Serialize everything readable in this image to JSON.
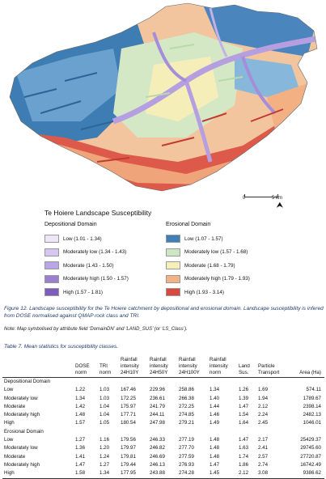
{
  "map": {
    "scale_label_start": "0",
    "scale_label_end": "5 km",
    "north_symbol": "⮝",
    "colors": {
      "blue_dark": "#2e6fa7",
      "blue_light": "#7fb1d6",
      "green": "#cfe5c3",
      "yellow": "#f4edb6",
      "orange": "#f3ac7f",
      "red": "#d64b40",
      "purple": "#b7a4e1"
    }
  },
  "legend": {
    "title": "Te Hoiere Landscape Susceptibility",
    "depositional": {
      "heading": "Depositional Domain",
      "items": [
        {
          "label": "Low (1.01 - 1.34)",
          "color": "#ede6f8"
        },
        {
          "label": "Moderately low (1.34 - 1.43)",
          "color": "#d6c8f0"
        },
        {
          "label": "Moderate (1.43 - 1.50)",
          "color": "#b9a5e4"
        },
        {
          "label": "Moderately high (1.50 - 1.57)",
          "color": "#9a80d2"
        },
        {
          "label": "High (1.57 - 1.81)",
          "color": "#7d5bbf"
        }
      ]
    },
    "erosional": {
      "heading": "Erosional Domain",
      "items": [
        {
          "label": "Low (1.07 - 1.57)",
          "color": "#3f7fb8"
        },
        {
          "label": "Moderately low (1.57 - 1.68)",
          "color": "#cfe6c5"
        },
        {
          "label": "Moderate (1.68 - 1.79)",
          "color": "#f5efb9"
        },
        {
          "label": "Moderately high (1.79 - 1.93)",
          "color": "#f4b183"
        },
        {
          "label": "High (1.93 - 3.14)",
          "color": "#d9483d"
        }
      ]
    }
  },
  "caption": {
    "figure": "Figure 12. Landscape susceptibility for the Te Hoiere catchment by depositional and erosional domain. Landscape susceptibility is infered from DOSE normalised against QMAP rock class and TRI.",
    "note": "Note: Map symbolised by attribute field ‘DomainDN’ and ‘LAND_SUS’ (or ‘LS_Class’)."
  },
  "table": {
    "title": "Table 7. Mean statistics for susceptibility classes.",
    "headers": [
      "",
      "DOSE norm",
      "TRI norm",
      "Rainfall intensity 24H10Y",
      "Rainfall intensity 24H50Y",
      "Rainfall intensity 24H100Y",
      "Rainfall intensity norm",
      "Land Sus.",
      "Particle Transport",
      "Area (Ha)"
    ],
    "sections": [
      {
        "name": "Depositional Domain",
        "rows": [
          [
            "Low",
            "1.22",
            "1.03",
            "167.46",
            "229.96",
            "258.86",
            "1.34",
            "1.26",
            "1.69",
            "574.11"
          ],
          [
            "Moderately low",
            "1.34",
            "1.03",
            "172.25",
            "236.61",
            "266.38",
            "1.40",
            "1.39",
            "1.94",
            "1789.67"
          ],
          [
            "Moderate",
            "1.42",
            "1.04",
            "175.97",
            "241.79",
            "272.25",
            "1.44",
            "1.47",
            "2.12",
            "2398.14"
          ],
          [
            "Moderately high",
            "1.48",
            "1.04",
            "177.71",
            "244.11",
            "274.85",
            "1.46",
            "1.54",
            "2.24",
            "2482.13"
          ],
          [
            "High",
            "1.57",
            "1.05",
            "180.54",
            "247.98",
            "279.21",
            "1.49",
            "1.64",
            "2.45",
            "1046.01"
          ]
        ]
      },
      {
        "name": "Erosional Domain",
        "rows": [
          [
            "Low",
            "1.27",
            "1.16",
            "179.56",
            "246.33",
            "277.19",
            "1.48",
            "1.47",
            "2.17",
            "25429.37"
          ],
          [
            "Moderately low",
            "1.36",
            "1.20",
            "179.97",
            "246.82",
            "277.70",
            "1.48",
            "1.63",
            "2.41",
            "29745.60"
          ],
          [
            "Moderate",
            "1.41",
            "1.24",
            "179.81",
            "246.69",
            "277.59",
            "1.48",
            "1.74",
            "2.57",
            "27720.87"
          ],
          [
            "Moderately high",
            "1.47",
            "1.27",
            "179.44",
            "246.13",
            "276.93",
            "1.47",
            "1.86",
            "2.74",
            "16742.49"
          ],
          [
            "High",
            "1.58",
            "1.34",
            "177.95",
            "243.88",
            "274.28",
            "1.45",
            "2.12",
            "3.08",
            "9386.62"
          ]
        ]
      }
    ]
  }
}
